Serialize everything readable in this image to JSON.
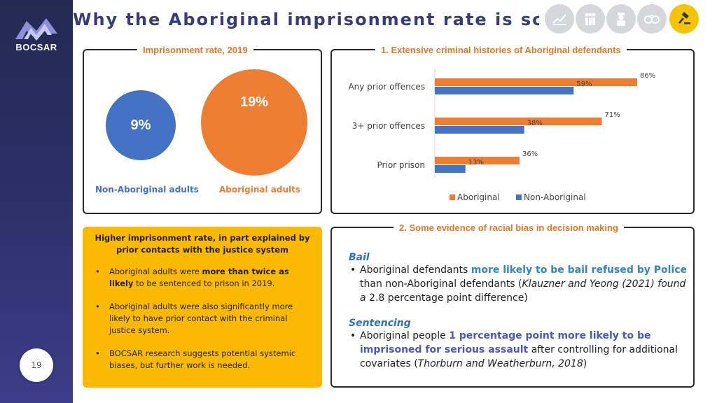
{
  "brand": {
    "name": "BOCSAR",
    "page_number": "19"
  },
  "header": {
    "title": "Why the Aboriginal imprisonment rate is so high"
  },
  "nav_icons": [
    {
      "name": "chart-icon",
      "glyph": "⟋",
      "active": false
    },
    {
      "name": "people-icon",
      "glyph": "👥",
      "active": false
    },
    {
      "name": "officer-icon",
      "glyph": "👮",
      "active": false
    },
    {
      "name": "handcuffs-icon",
      "glyph": "⚭",
      "active": false
    },
    {
      "name": "gavel-icon",
      "glyph": "⚒",
      "active": true
    }
  ],
  "imprisonment": {
    "title": "Imprisonment rate, 2019",
    "non_aboriginal": {
      "value": "9%",
      "label": "Non-Aboriginal adults",
      "color": "#4472c4"
    },
    "aboriginal": {
      "value": "19%",
      "label": "Aboriginal adults",
      "color": "#ed7d31"
    }
  },
  "chart_data": {
    "type": "bar",
    "orientation": "horizontal",
    "title": "1. Extensive criminal histories of Aboriginal defendants",
    "categories": [
      "Any prior offences",
      "3+ prior offences",
      "Prior prison"
    ],
    "series": [
      {
        "name": "Aboriginal",
        "color": "#ed7d31",
        "values": [
          86,
          71,
          36
        ]
      },
      {
        "name": "Non-Aboriginal",
        "color": "#4472c4",
        "values": [
          59,
          38,
          13
        ]
      }
    ],
    "value_suffix": "%",
    "xlim": [
      0,
      100
    ],
    "legend": "bottom"
  },
  "explanation": {
    "heading": "Higher imprisonment rate, in part explained by prior contacts with the justice system",
    "points": [
      {
        "pre": "Aboriginal adults were ",
        "bold": "more than twice as likely",
        "post": " to be sentenced to prison in 2019."
      },
      {
        "pre": "Aboriginal adults were also significantly more likely to have prior contact with the criminal justice system.",
        "bold": "",
        "post": ""
      },
      {
        "pre": "BOCSAR research suggests potential systemic biases, but further work is needed.",
        "bold": "",
        "post": ""
      }
    ]
  },
  "bias": {
    "title": "2. Some evidence of racial bias in decision making",
    "bail": {
      "heading": "Bail",
      "pre": "Aboriginal defendants ",
      "highlight": "more likely to be bail refused by Police",
      "mid": " than non-Aboriginal defendants (",
      "cite": "Klauzner and Yeong (2021) found a",
      "post": " 2.8 percentage point difference)"
    },
    "sentencing": {
      "heading": "Sentencing",
      "pre": "Aboriginal people ",
      "highlight": "1 percentage point more likely to be imprisoned for serious assault",
      "mid": " after controlling for additional covariates (",
      "cite": "Thorburn and Weatherburn, 2018",
      "post": ")"
    }
  }
}
